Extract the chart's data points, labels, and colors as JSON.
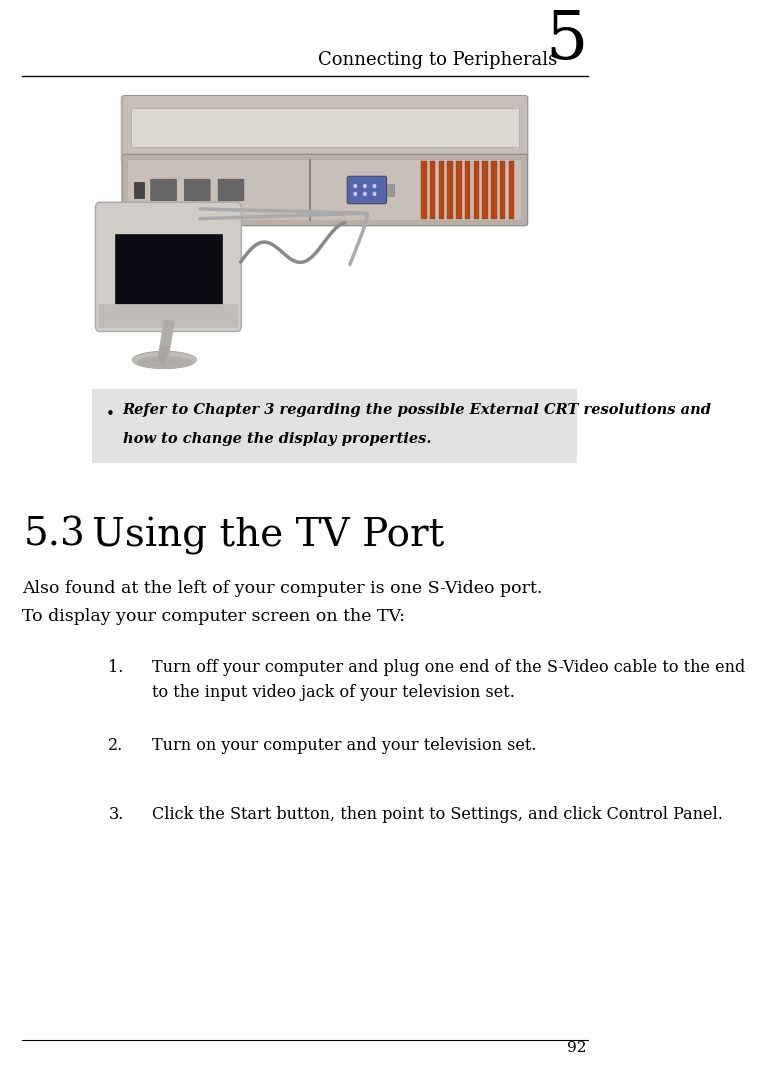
{
  "page_bg": "#ffffff",
  "header_text": "Connecting to Peripherals",
  "header_number": "5",
  "section_number": "5.3",
  "section_title": "Using the TV Port",
  "intro_line1": "Also found at the left of your computer is one S-Video port.",
  "intro_line2": "To display your computer screen on the TV:",
  "note_bg": "#e2e2e2",
  "note_bullet": "•",
  "note_line1": "Refer to Chapter 3 regarding the possible External CRT resolutions and",
  "note_line2": "how to change the display properties.",
  "steps": [
    {
      "num": "1.",
      "line1": "Turn off your computer and plug one end of the S-Video cable to the end",
      "line2": "to the input video jack of your television set."
    },
    {
      "num": "2.",
      "line1": "Turn on your computer and your television set.",
      "line2": ""
    },
    {
      "num": "3.",
      "line1": "Click the Start button, then point to Settings, and click Control Panel.",
      "line2": ""
    }
  ],
  "footer_text": "92"
}
